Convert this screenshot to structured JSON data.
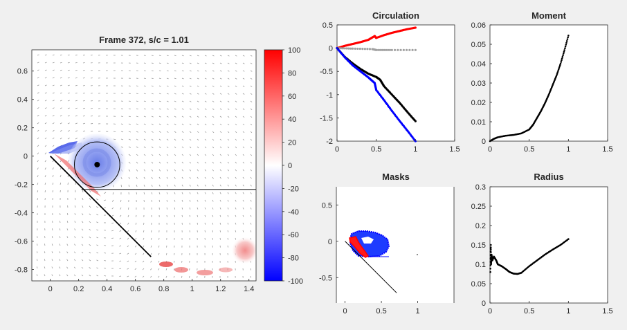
{
  "chart_data": [
    {
      "type": "heatmap",
      "title": "Frame 372, s/c = 1.01",
      "xlim": [
        -0.13,
        1.45
      ],
      "ylim": [
        -0.88,
        0.75
      ],
      "xticks": [
        "0",
        "0.2",
        "0.4",
        "0.6",
        "0.8",
        "1",
        "1.2",
        "1.4"
      ],
      "yticks": [
        "0.6",
        "0.4",
        "0.2",
        "0",
        "-0.2",
        "-0.4",
        "-0.6",
        "-0.8"
      ],
      "colorbar": {
        "range": [
          -100,
          100
        ],
        "ticks": [
          "100",
          "80",
          "60",
          "40",
          "20",
          "0",
          "-20",
          "-40",
          "-60",
          "-80",
          "-100"
        ],
        "colors": [
          "#0000ff",
          "#ffffff",
          "#ff0000"
        ]
      },
      "plate": [
        [
          0,
          0
        ],
        [
          0.71,
          -0.71
        ]
      ],
      "vortex_center": [
        0.33,
        -0.06
      ],
      "vortex_radius": 0.16,
      "boundary_line_y": -0.235,
      "boundary_line_x": [
        0.22,
        1.45
      ],
      "quiver": "velocity vectors"
    },
    {
      "type": "line",
      "title": "Circulation",
      "xlim": [
        0,
        1.5
      ],
      "ylim": [
        -2,
        0.5
      ],
      "xticks": [
        "0",
        "0.5",
        "1",
        "1.5"
      ],
      "yticks": [
        "0.5",
        "0",
        "-0.5",
        "-1",
        "-1.5",
        "-2"
      ],
      "series": [
        {
          "color": "#ff0000",
          "x": [
            0,
            0.1,
            0.2,
            0.3,
            0.4,
            0.48,
            0.5,
            0.6,
            0.7,
            0.8,
            0.9,
            1.0
          ],
          "y": [
            0,
            0.05,
            0.09,
            0.13,
            0.18,
            0.26,
            0.22,
            0.28,
            0.33,
            0.37,
            0.41,
            0.44
          ]
        },
        {
          "color": "#a0a0a0",
          "x": [
            0,
            0.2,
            0.45,
            0.5,
            0.7,
            1.0
          ],
          "y": [
            0,
            -0.01,
            -0.02,
            -0.04,
            -0.04,
            -0.04
          ]
        },
        {
          "color": "#000000",
          "x": [
            0,
            0.1,
            0.2,
            0.3,
            0.4,
            0.5,
            0.55,
            0.6,
            0.7,
            0.8,
            0.9,
            1.0
          ],
          "y": [
            0,
            -0.19,
            -0.33,
            -0.45,
            -0.55,
            -0.62,
            -0.68,
            -0.82,
            -1.0,
            -1.18,
            -1.38,
            -1.57
          ]
        },
        {
          "color": "#0000ff",
          "x": [
            0,
            0.1,
            0.2,
            0.3,
            0.4,
            0.48,
            0.5,
            0.6,
            0.7,
            0.8,
            0.9,
            1.0
          ],
          "y": [
            0,
            -0.2,
            -0.37,
            -0.5,
            -0.63,
            -0.75,
            -0.9,
            -1.12,
            -1.35,
            -1.57,
            -1.78,
            -2.0
          ]
        }
      ]
    },
    {
      "type": "scatter",
      "title": "Moment",
      "xlim": [
        0,
        1.5
      ],
      "ylim": [
        0,
        0.06
      ],
      "xticks": [
        "0",
        "0.5",
        "1",
        "1.5"
      ],
      "yticks": [
        "0.06",
        "0.05",
        "0.04",
        "0.03",
        "0.02",
        "0.01",
        "0"
      ],
      "series": [
        {
          "color": "#000000",
          "x": [
            0,
            0.05,
            0.1,
            0.2,
            0.3,
            0.4,
            0.5,
            0.55,
            0.6,
            0.65,
            0.7,
            0.75,
            0.8,
            0.85,
            0.9,
            0.95,
            1.0
          ],
          "y": [
            0,
            0.0012,
            0.002,
            0.0028,
            0.0032,
            0.004,
            0.006,
            0.0085,
            0.012,
            0.0155,
            0.0195,
            0.024,
            0.029,
            0.034,
            0.04,
            0.047,
            0.0545
          ]
        }
      ]
    },
    {
      "type": "scatter",
      "title": "Masks",
      "xlim": [
        -0.12,
        1.5
      ],
      "ylim": [
        -0.85,
        0.75
      ],
      "xticks": [
        "0",
        "0.5",
        "1"
      ],
      "yticks": [
        "0.5",
        "0",
        "-0.5"
      ],
      "plate": [
        [
          0,
          0
        ],
        [
          0.71,
          -0.71
        ]
      ],
      "regions": [
        {
          "color": "#ff0000",
          "label": "red mask"
        },
        {
          "color": "#0000ff",
          "label": "blue mask"
        }
      ]
    },
    {
      "type": "scatter",
      "title": "Radius",
      "xlim": [
        0,
        1.5
      ],
      "ylim": [
        0,
        0.3
      ],
      "xticks": [
        "0",
        "0.5",
        "1",
        "1.5"
      ],
      "yticks": [
        "0.3",
        "0.25",
        "0.2",
        "0.15",
        "0.1",
        "0.05",
        "0"
      ],
      "series": [
        {
          "color": "#000000",
          "x": [
            0.005,
            0.01,
            0.015,
            0.02,
            0.03,
            0.05,
            0.08,
            0.1,
            0.15,
            0.2,
            0.25,
            0.3,
            0.35,
            0.4,
            0.5,
            0.6,
            0.7,
            0.8,
            0.9,
            1.0
          ],
          "y": [
            0.08,
            0.15,
            0.1,
            0.125,
            0.11,
            0.12,
            0.11,
            0.1,
            0.095,
            0.088,
            0.08,
            0.076,
            0.075,
            0.078,
            0.095,
            0.11,
            0.125,
            0.138,
            0.15,
            0.165
          ]
        }
      ]
    }
  ]
}
